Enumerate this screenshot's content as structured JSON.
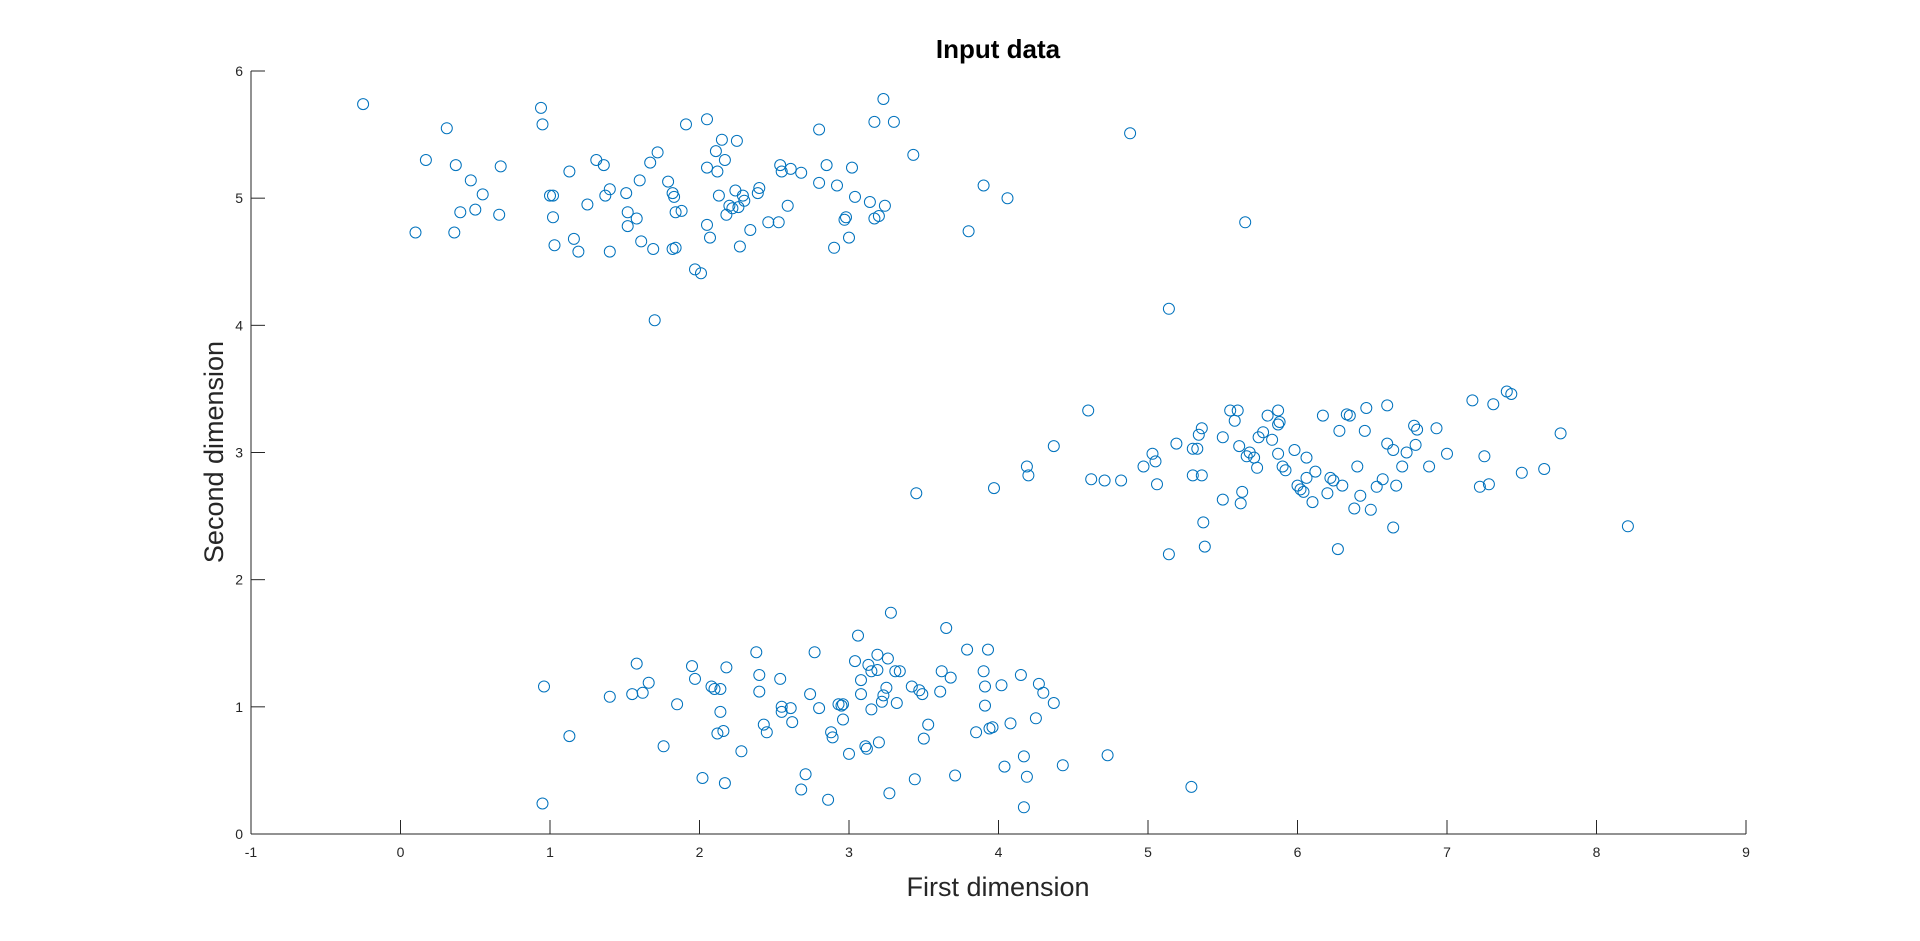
{
  "chart_data": {
    "type": "scatter",
    "title": "Input data",
    "xlabel": "First dimension",
    "ylabel": "Second dimension",
    "xlim": [
      -1,
      9
    ],
    "ylim": [
      0,
      6
    ],
    "xticks": [
      -1,
      0,
      1,
      2,
      3,
      4,
      5,
      6,
      7,
      8,
      9
    ],
    "yticks": [
      0,
      1,
      2,
      3,
      4,
      5,
      6
    ],
    "grid": false,
    "marker": "circle-open",
    "color": "#0072BD",
    "series": [
      {
        "points": [
          [
            -0.25,
            5.74
          ],
          [
            0.94,
            5.71
          ],
          [
            0.95,
            5.58
          ],
          [
            0.31,
            5.55
          ],
          [
            0.17,
            5.3
          ],
          [
            0.37,
            5.26
          ],
          [
            0.67,
            5.25
          ],
          [
            0.47,
            5.14
          ],
          [
            0.55,
            5.03
          ],
          [
            0.4,
            4.89
          ],
          [
            0.5,
            4.91
          ],
          [
            0.66,
            4.87
          ],
          [
            0.1,
            4.73
          ],
          [
            0.36,
            4.73
          ],
          [
            1.0,
            5.02
          ],
          [
            1.02,
            5.02
          ],
          [
            1.02,
            4.85
          ],
          [
            1.03,
            4.63
          ],
          [
            1.13,
            5.21
          ],
          [
            1.16,
            4.68
          ],
          [
            1.19,
            4.58
          ],
          [
            1.25,
            4.95
          ],
          [
            1.31,
            5.3
          ],
          [
            1.36,
            5.26
          ],
          [
            1.37,
            5.02
          ],
          [
            1.4,
            5.07
          ],
          [
            1.4,
            4.58
          ],
          [
            1.51,
            5.04
          ],
          [
            1.52,
            4.89
          ],
          [
            1.52,
            4.78
          ],
          [
            1.58,
            4.84
          ],
          [
            1.6,
            5.14
          ],
          [
            1.61,
            4.66
          ],
          [
            1.67,
            5.28
          ],
          [
            1.69,
            4.6
          ],
          [
            1.72,
            5.36
          ],
          [
            1.7,
            4.04
          ],
          [
            1.79,
            5.13
          ],
          [
            1.82,
            5.04
          ],
          [
            1.83,
            5.01
          ],
          [
            1.84,
            4.89
          ],
          [
            1.82,
            4.6
          ],
          [
            1.84,
            4.61
          ],
          [
            1.88,
            4.9
          ],
          [
            1.91,
            5.58
          ],
          [
            1.97,
            4.44
          ],
          [
            2.01,
            4.41
          ],
          [
            2.05,
            5.62
          ],
          [
            2.05,
            5.24
          ],
          [
            2.05,
            4.79
          ],
          [
            2.07,
            4.69
          ],
          [
            2.11,
            5.37
          ],
          [
            2.12,
            5.21
          ],
          [
            2.13,
            5.02
          ],
          [
            2.15,
            5.46
          ],
          [
            2.17,
            5.3
          ],
          [
            2.18,
            4.87
          ],
          [
            2.2,
            4.94
          ],
          [
            2.22,
            4.92
          ],
          [
            2.24,
            5.06
          ],
          [
            2.25,
            5.45
          ],
          [
            2.26,
            4.93
          ],
          [
            2.27,
            4.62
          ],
          [
            2.29,
            5.02
          ],
          [
            2.3,
            4.98
          ],
          [
            2.34,
            4.75
          ],
          [
            2.39,
            5.04
          ],
          [
            2.4,
            5.08
          ],
          [
            2.46,
            4.81
          ],
          [
            2.53,
            4.81
          ],
          [
            2.54,
            5.26
          ],
          [
            2.55,
            5.21
          ],
          [
            2.59,
            4.94
          ],
          [
            2.61,
            5.23
          ],
          [
            2.68,
            5.2
          ],
          [
            2.8,
            5.54
          ],
          [
            2.8,
            5.12
          ],
          [
            2.85,
            5.26
          ],
          [
            2.9,
            4.61
          ],
          [
            2.92,
            5.1
          ],
          [
            2.97,
            4.83
          ],
          [
            2.98,
            4.85
          ],
          [
            3.0,
            4.69
          ],
          [
            3.02,
            5.24
          ],
          [
            3.04,
            5.01
          ],
          [
            3.14,
            4.97
          ],
          [
            3.17,
            4.84
          ],
          [
            3.17,
            5.6
          ],
          [
            3.2,
            4.86
          ],
          [
            3.23,
            5.78
          ],
          [
            3.24,
            4.94
          ],
          [
            3.3,
            5.6
          ],
          [
            3.43,
            5.34
          ],
          [
            3.8,
            4.74
          ],
          [
            3.9,
            5.1
          ],
          [
            4.06,
            5.0
          ],
          [
            4.88,
            5.51
          ],
          [
            5.14,
            4.13
          ],
          [
            5.65,
            4.81
          ],
          [
            3.45,
            2.68
          ],
          [
            3.97,
            2.72
          ],
          [
            4.19,
            2.89
          ],
          [
            4.2,
            2.82
          ],
          [
            4.37,
            3.05
          ],
          [
            4.6,
            3.33
          ],
          [
            4.62,
            2.79
          ],
          [
            4.71,
            2.78
          ],
          [
            4.82,
            2.78
          ],
          [
            4.97,
            2.89
          ],
          [
            5.03,
            2.99
          ],
          [
            5.05,
            2.93
          ],
          [
            5.06,
            2.75
          ],
          [
            5.19,
            3.07
          ],
          [
            5.3,
            3.03
          ],
          [
            5.33,
            3.03
          ],
          [
            5.34,
            3.14
          ],
          [
            5.36,
            3.19
          ],
          [
            5.3,
            2.82
          ],
          [
            5.36,
            2.82
          ],
          [
            5.37,
            2.45
          ],
          [
            5.38,
            2.26
          ],
          [
            5.14,
            2.2
          ],
          [
            5.5,
            3.12
          ],
          [
            5.5,
            2.63
          ],
          [
            5.55,
            3.33
          ],
          [
            5.58,
            3.25
          ],
          [
            5.6,
            3.33
          ],
          [
            5.61,
            3.05
          ],
          [
            5.62,
            2.6
          ],
          [
            5.63,
            2.69
          ],
          [
            5.66,
            2.97
          ],
          [
            5.68,
            3.0
          ],
          [
            5.71,
            2.96
          ],
          [
            5.73,
            2.88
          ],
          [
            5.74,
            3.12
          ],
          [
            5.77,
            3.16
          ],
          [
            5.8,
            3.29
          ],
          [
            5.83,
            3.1
          ],
          [
            5.87,
            3.33
          ],
          [
            5.87,
            3.22
          ],
          [
            5.87,
            2.99
          ],
          [
            5.88,
            3.24
          ],
          [
            5.9,
            2.89
          ],
          [
            5.92,
            2.86
          ],
          [
            5.98,
            3.02
          ],
          [
            6.0,
            2.74
          ],
          [
            6.02,
            2.71
          ],
          [
            6.04,
            2.69
          ],
          [
            6.06,
            2.96
          ],
          [
            6.06,
            2.8
          ],
          [
            6.1,
            2.61
          ],
          [
            6.12,
            2.85
          ],
          [
            6.17,
            3.29
          ],
          [
            6.2,
            2.68
          ],
          [
            6.22,
            2.8
          ],
          [
            6.24,
            2.78
          ],
          [
            6.27,
            2.24
          ],
          [
            6.28,
            3.17
          ],
          [
            6.3,
            2.74
          ],
          [
            6.33,
            3.3
          ],
          [
            6.35,
            3.29
          ],
          [
            6.38,
            2.56
          ],
          [
            6.4,
            2.89
          ],
          [
            6.42,
            2.66
          ],
          [
            6.45,
            3.17
          ],
          [
            6.46,
            3.35
          ],
          [
            6.49,
            2.55
          ],
          [
            6.53,
            2.73
          ],
          [
            6.57,
            2.79
          ],
          [
            6.6,
            3.37
          ],
          [
            6.6,
            3.07
          ],
          [
            6.64,
            2.41
          ],
          [
            6.64,
            3.02
          ],
          [
            6.66,
            2.74
          ],
          [
            6.7,
            2.89
          ],
          [
            6.73,
            3.0
          ],
          [
            6.78,
            3.21
          ],
          [
            6.79,
            3.06
          ],
          [
            6.8,
            3.18
          ],
          [
            6.88,
            2.89
          ],
          [
            6.93,
            3.19
          ],
          [
            7.0,
            2.99
          ],
          [
            7.17,
            3.41
          ],
          [
            7.22,
            2.73
          ],
          [
            7.25,
            2.97
          ],
          [
            7.28,
            2.75
          ],
          [
            7.31,
            3.38
          ],
          [
            7.4,
            3.48
          ],
          [
            7.43,
            3.46
          ],
          [
            7.5,
            2.84
          ],
          [
            7.65,
            2.87
          ],
          [
            7.76,
            3.15
          ],
          [
            8.21,
            2.42
          ],
          [
            0.96,
            1.16
          ],
          [
            0.95,
            0.24
          ],
          [
            1.13,
            0.77
          ],
          [
            1.4,
            1.08
          ],
          [
            1.55,
            1.1
          ],
          [
            1.58,
            1.34
          ],
          [
            1.62,
            1.11
          ],
          [
            1.66,
            1.19
          ],
          [
            1.76,
            0.69
          ],
          [
            1.85,
            1.02
          ],
          [
            1.95,
            1.32
          ],
          [
            1.97,
            1.22
          ],
          [
            2.02,
            0.44
          ],
          [
            2.08,
            1.16
          ],
          [
            2.1,
            1.14
          ],
          [
            2.12,
            0.79
          ],
          [
            2.14,
            0.96
          ],
          [
            2.14,
            1.14
          ],
          [
            2.16,
            0.81
          ],
          [
            2.17,
            0.4
          ],
          [
            2.18,
            1.31
          ],
          [
            2.28,
            0.65
          ],
          [
            2.38,
            1.43
          ],
          [
            2.4,
            1.25
          ],
          [
            2.4,
            1.12
          ],
          [
            2.43,
            0.86
          ],
          [
            2.45,
            0.8
          ],
          [
            2.54,
            1.22
          ],
          [
            2.55,
            1.0
          ],
          [
            2.55,
            0.96
          ],
          [
            2.61,
            0.99
          ],
          [
            2.62,
            0.88
          ],
          [
            2.68,
            0.35
          ],
          [
            2.71,
            0.47
          ],
          [
            2.74,
            1.1
          ],
          [
            2.77,
            1.43
          ],
          [
            2.8,
            0.99
          ],
          [
            2.86,
            0.27
          ],
          [
            2.88,
            0.8
          ],
          [
            2.89,
            0.76
          ],
          [
            2.93,
            1.02
          ],
          [
            2.95,
            1.01
          ],
          [
            2.96,
            1.02
          ],
          [
            2.96,
            0.9
          ],
          [
            3.0,
            0.63
          ],
          [
            3.04,
            1.36
          ],
          [
            3.06,
            1.56
          ],
          [
            3.08,
            1.21
          ],
          [
            3.08,
            1.1
          ],
          [
            3.11,
            0.69
          ],
          [
            3.12,
            0.67
          ],
          [
            3.13,
            1.33
          ],
          [
            3.15,
            1.28
          ],
          [
            3.15,
            0.98
          ],
          [
            3.19,
            1.29
          ],
          [
            3.19,
            1.41
          ],
          [
            3.2,
            0.72
          ],
          [
            3.22,
            1.04
          ],
          [
            3.23,
            1.09
          ],
          [
            3.25,
            1.15
          ],
          [
            3.26,
            1.38
          ],
          [
            3.28,
            1.74
          ],
          [
            3.27,
            0.32
          ],
          [
            3.31,
            1.28
          ],
          [
            3.32,
            1.03
          ],
          [
            3.34,
            1.28
          ],
          [
            3.42,
            1.16
          ],
          [
            3.44,
            0.43
          ],
          [
            3.47,
            1.13
          ],
          [
            3.49,
            1.1
          ],
          [
            3.5,
            0.75
          ],
          [
            3.53,
            0.86
          ],
          [
            3.61,
            1.12
          ],
          [
            3.62,
            1.28
          ],
          [
            3.65,
            1.62
          ],
          [
            3.68,
            1.23
          ],
          [
            3.71,
            0.46
          ],
          [
            3.79,
            1.45
          ],
          [
            3.85,
            0.8
          ],
          [
            3.9,
            1.28
          ],
          [
            3.91,
            1.16
          ],
          [
            3.91,
            1.01
          ],
          [
            3.93,
            1.45
          ],
          [
            3.94,
            0.83
          ],
          [
            3.96,
            0.84
          ],
          [
            4.02,
            1.17
          ],
          [
            4.04,
            0.53
          ],
          [
            4.08,
            0.87
          ],
          [
            4.15,
            1.25
          ],
          [
            4.17,
            0.61
          ],
          [
            4.19,
            0.45
          ],
          [
            4.17,
            0.21
          ],
          [
            4.25,
            0.91
          ],
          [
            4.27,
            1.18
          ],
          [
            4.3,
            1.11
          ],
          [
            4.37,
            1.03
          ],
          [
            4.43,
            0.54
          ],
          [
            4.73,
            0.62
          ],
          [
            5.29,
            0.37
          ]
        ]
      }
    ]
  }
}
